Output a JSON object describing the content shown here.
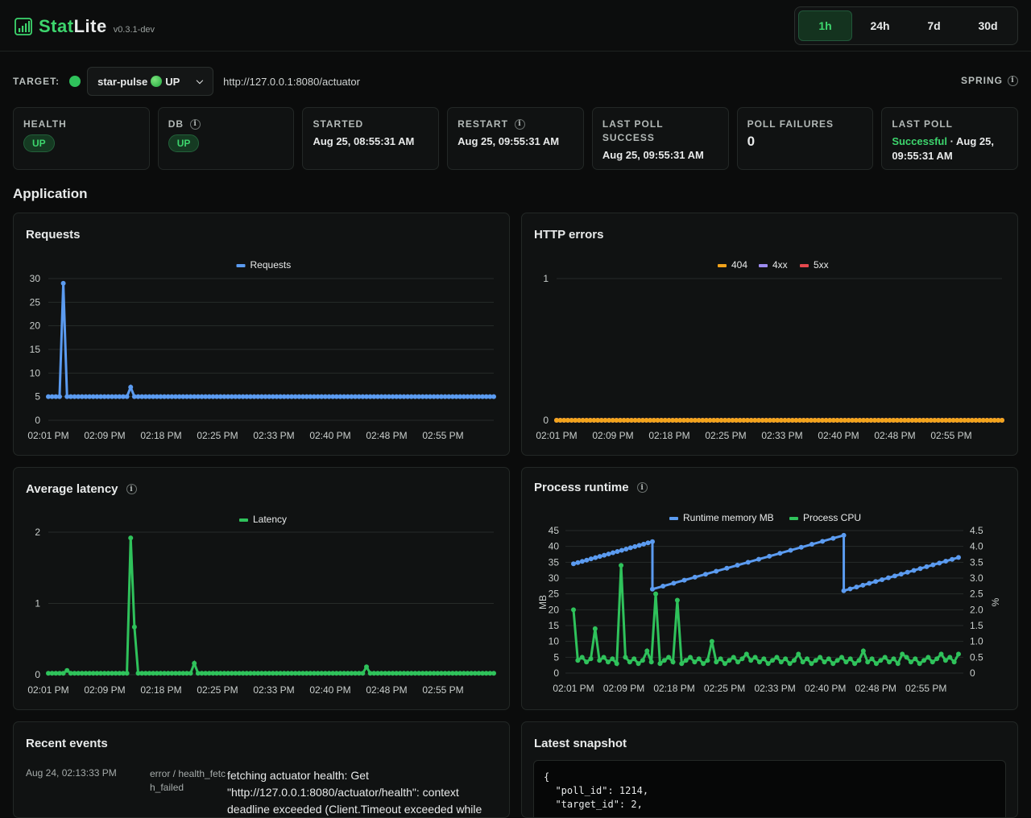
{
  "brand": {
    "name_a": "Stat",
    "name_b": "Lite",
    "version": "v0.3.1-dev"
  },
  "range": {
    "options": [
      "1h",
      "24h",
      "7d",
      "30d"
    ],
    "selected": "1h"
  },
  "target": {
    "label": "TARGET:",
    "selected": "star-pulse",
    "status": "UP",
    "url": "http://127.0.0.1:8080/actuator",
    "framework": "SPRING"
  },
  "cards": {
    "health": {
      "label": "HEALTH",
      "value": "UP"
    },
    "db": {
      "label": "DB",
      "value": "UP"
    },
    "started": {
      "label": "STARTED",
      "value": "Aug 25, 08:55:31 AM"
    },
    "restart": {
      "label": "RESTART",
      "value": "Aug 25, 09:55:31 AM"
    },
    "last_poll_success": {
      "label": "LAST POLL SUCCESS",
      "value": "Aug 25, 09:55:31 AM"
    },
    "poll_failures": {
      "label": "POLL FAILURES",
      "value": "0"
    },
    "last_poll": {
      "label": "LAST POLL",
      "status": "Successful",
      "sep": " · ",
      "value": "Aug 25, 09:55:31 AM"
    }
  },
  "section_title": "Application",
  "colors": {
    "blue": "#5b9bf0",
    "green": "#2fc25b",
    "orange": "#f2a31b",
    "purple": "#9d8cf0",
    "red": "#e5484d"
  },
  "chart_data": [
    {
      "type": "line",
      "title": "Requests",
      "x_ticks": [
        "02:01 PM",
        "02:09 PM",
        "02:18 PM",
        "02:25 PM",
        "02:33 PM",
        "02:40 PM",
        "02:48 PM",
        "02:55 PM"
      ],
      "y_ticks": [
        0,
        5,
        10,
        15,
        20,
        25,
        30
      ],
      "ylim": [
        0,
        30
      ],
      "series": [
        {
          "name": "Requests",
          "color": "#5b9bf0",
          "baseline": 5,
          "spikes": [
            [
              0.033,
              29
            ],
            [
              0.186,
              7
            ]
          ],
          "count": 120
        }
      ]
    },
    {
      "type": "line",
      "title": "HTTP errors",
      "x_ticks": [
        "02:01 PM",
        "02:09 PM",
        "02:18 PM",
        "02:25 PM",
        "02:33 PM",
        "02:40 PM",
        "02:48 PM",
        "02:55 PM"
      ],
      "y_ticks": [
        0,
        1
      ],
      "ylim": [
        0,
        1
      ],
      "series": [
        {
          "name": "404",
          "color": "#f2a31b",
          "baseline": 0,
          "count": 120
        },
        {
          "name": "4xx",
          "color": "#9d8cf0",
          "baseline": 0,
          "count": 120
        },
        {
          "name": "5xx",
          "color": "#e5484d",
          "baseline": 0,
          "count": 120
        }
      ]
    },
    {
      "type": "line",
      "title": "Average latency",
      "x_ticks": [
        "02:01 PM",
        "02:09 PM",
        "02:18 PM",
        "02:25 PM",
        "02:33 PM",
        "02:40 PM",
        "02:48 PM",
        "02:55 PM"
      ],
      "y_ticks": [
        0,
        1,
        2
      ],
      "ylim": [
        0,
        2
      ],
      "series": [
        {
          "name": "Latency",
          "color": "#2fc25b",
          "baseline": 0.02,
          "spikes": [
            [
              0.186,
              1.92
            ],
            [
              0.197,
              0.67
            ],
            [
              0.33,
              0.16
            ],
            [
              0.715,
              0.11
            ],
            [
              0.04,
              0.06
            ]
          ],
          "count": 120
        }
      ]
    },
    {
      "type": "line",
      "title": "Process runtime",
      "ylabel": "MB",
      "y2label": "%",
      "x_ticks": [
        "02:01 PM",
        "02:09 PM",
        "02:18 PM",
        "02:25 PM",
        "02:33 PM",
        "02:40 PM",
        "02:48 PM",
        "02:55 PM"
      ],
      "y_ticks": [
        0,
        5,
        10,
        15,
        20,
        25,
        30,
        35,
        40,
        45
      ],
      "y2_ticks": [
        "0",
        "0.5",
        "1.0",
        "1.5",
        "2.0",
        "2.5",
        "3.0",
        "3.5",
        "4.0",
        "4.5"
      ],
      "ylim": [
        0,
        45
      ],
      "y2lim": [
        0,
        4.5
      ],
      "series": [
        {
          "name": "Runtime memory MB",
          "color": "#5b9bf0",
          "segments": [
            [
              0,
              34.5,
              0.205,
              41.5
            ],
            [
              0.205,
              26.5,
              0.702,
              43.5
            ],
            [
              0.702,
              26,
              1.0,
              36.5
            ]
          ]
        },
        {
          "name": "Process CPU",
          "color": "#2fc25b",
          "baseline": 0.3,
          "spikes": [
            [
              0.0,
              2.0
            ],
            [
              0.058,
              1.4
            ],
            [
              0.12,
              3.4
            ],
            [
              0.21,
              4.3
            ],
            [
              0.215,
              2.5
            ],
            [
              0.27,
              2.3
            ],
            [
              0.36,
              1.0
            ],
            [
              0.19,
              0.7
            ],
            [
              0.58,
              0.6
            ],
            [
              0.75,
              0.7
            ],
            [
              0.95,
              0.6
            ],
            [
              1.0,
              0.6
            ],
            [
              0.85,
              0.6
            ],
            [
              0.45,
              0.6
            ]
          ],
          "count": 90
        }
      ]
    }
  ],
  "events": {
    "title": "Recent events",
    "rows": [
      {
        "time": "Aug 24, 02:13:33 PM",
        "type": "error / health_fetch_failed",
        "message": "fetching actuator health: Get \"http://127.0.0.1:8080/actuator/health\": context deadline exceeded (Client.Timeout exceeded while"
      }
    ]
  },
  "snapshot": {
    "title": "Latest snapshot",
    "json_text": "{\n  \"poll_id\": 1214,\n  \"target_id\": 2,"
  }
}
